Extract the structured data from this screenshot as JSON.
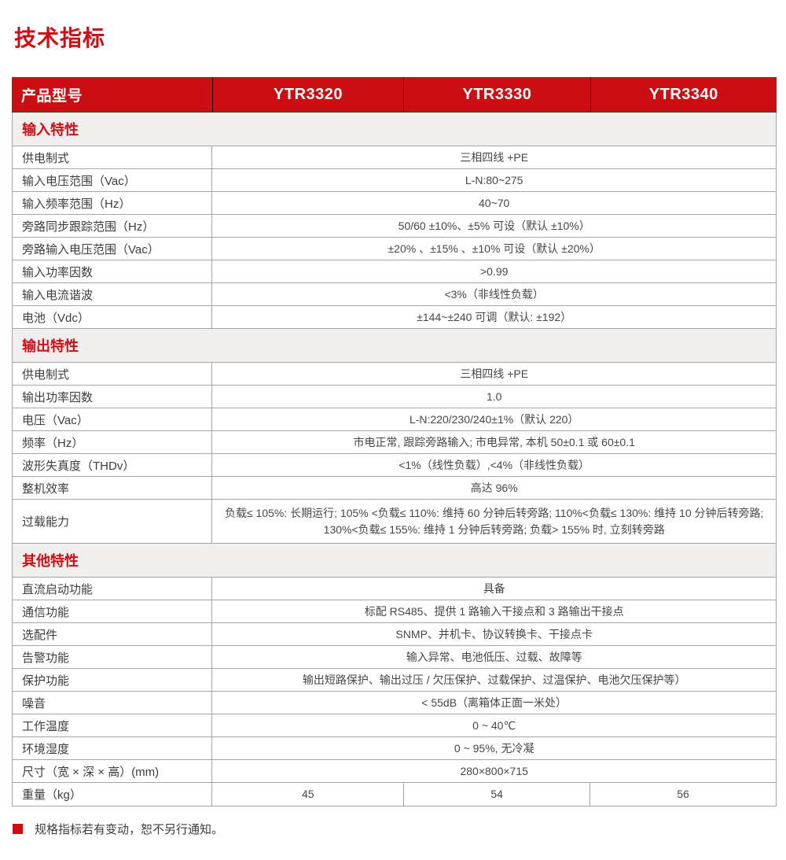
{
  "page": {
    "title": "技术指标",
    "footnote": "规格指标若有变动，恕不另行通知。"
  },
  "colors": {
    "brand_red": "#cb0e14",
    "section_band_bg": "#f0efed",
    "grid_line": "#a6a6a6"
  },
  "table": {
    "header": {
      "label": "产品型号",
      "models": [
        "YTR3320",
        "YTR3330",
        "YTR3340"
      ]
    },
    "sections": [
      {
        "title": "输入特性",
        "rows": [
          {
            "label": "供电制式",
            "value": "三相四线 +PE"
          },
          {
            "label": "输入电压范围（Vac）",
            "value": "L-N:80~275"
          },
          {
            "label": "输入频率范围（Hz）",
            "value": "40~70"
          },
          {
            "label": "旁路同步跟踪范围（Hz）",
            "value": "50/60  ±10%、±5% 可设（默认 ±10%）"
          },
          {
            "label": "旁路输入电压范围（Vac）",
            "value": "±20% 、±15% 、±10% 可设（默认 ±20%）"
          },
          {
            "label": "输入功率因数",
            "value": ">0.99"
          },
          {
            "label": "输入电流谐波",
            "value": "<3%（非线性负载）"
          },
          {
            "label": "电池（Vdc）",
            "value": "±144~±240 可调（默认: ±192）"
          }
        ]
      },
      {
        "title": "输出特性",
        "rows": [
          {
            "label": "供电制式",
            "value": "三相四线 +PE"
          },
          {
            "label": "输出功率因数",
            "value": "1.0"
          },
          {
            "label": "电压（Vac）",
            "value": "L-N:220/230/240±1%（默认 220）"
          },
          {
            "label": "频率（Hz）",
            "value": "市电正常, 跟踪旁路输入; 市电异常, 本机 50±0.1 或 60±0.1"
          },
          {
            "label": "波形失真度（THDv）",
            "value": "<1%（线性负载）,<4%（非线性负载）"
          },
          {
            "label": "整机效率",
            "value": "高达 96%"
          },
          {
            "label": "过载能力",
            "value": "负载≤ 105%: 长期运行; 105% <负载≤ 110%: 维持 60 分钟后转旁路; 110%<负载≤ 130%: 维持 10 分钟后转旁路; 130%<负载≤ 155%: 维持 1 分钟后转旁路; 负载> 155% 时, 立刻转旁路"
          }
        ]
      },
      {
        "title": "其他特性",
        "rows": [
          {
            "label": "直流启动功能",
            "value": "具备"
          },
          {
            "label": "通信功能",
            "value": "标配 RS485、提供 1 路输入干接点和 3 路输出干接点"
          },
          {
            "label": "选配件",
            "value": "SNMP、并机卡、协议转换卡、干接点卡"
          },
          {
            "label": "告警功能",
            "value": "输入异常、电池低压、过载、故障等"
          },
          {
            "label": "保护功能",
            "value": "输出短路保护、输出过压 / 欠压保护、过载保护、过温保护、电池欠压保护等）"
          },
          {
            "label": "噪音",
            "value": "< 55dB（离箱体正面一米处）"
          },
          {
            "label": "工作温度",
            "value": "0 ~ 40℃"
          },
          {
            "label": "环境湿度",
            "value": "0 ~ 95%, 无冷凝"
          },
          {
            "label": "尺寸（宽 × 深 × 高）(mm)",
            "value": "280×800×715"
          },
          {
            "label": "重量（kg）",
            "values": [
              "45",
              "54",
              "56"
            ]
          }
        ]
      }
    ]
  }
}
